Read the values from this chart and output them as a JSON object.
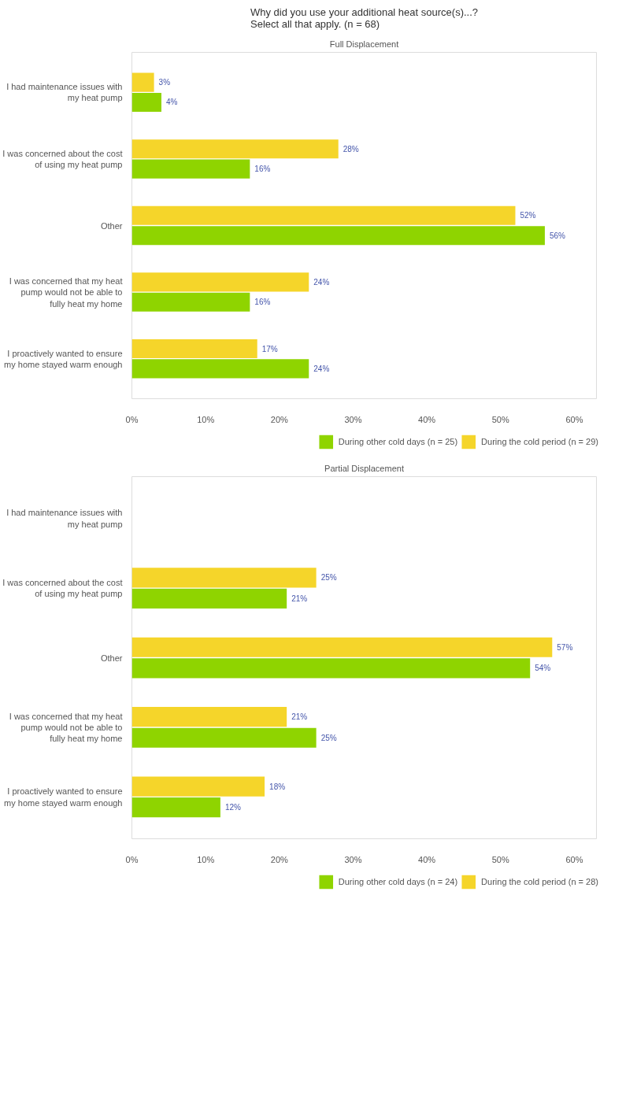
{
  "chart_data": [
    {
      "type": "bar",
      "orientation": "horizontal",
      "title": "Why did you use your additional heat source(s)...?\nSelect all that apply. (n = 68)",
      "subtitle": "Full Displacement",
      "categories": [
        "I had maintenance issues with my heat pump",
        "I was concerned about the cost of using my heat pump",
        "Other",
        "I was concerned that my heat pump would not be able to fully heat my home",
        "I proactively wanted to ensure my home stayed warm enough"
      ],
      "series": [
        {
          "name": "During other cold days (n = 25)",
          "color": "#8fd400",
          "values": [
            4,
            16,
            56,
            16,
            24
          ],
          "value_labels": [
            "4%",
            "16%",
            "56%",
            "16%",
            "24%"
          ]
        },
        {
          "name": "During the cold period (n = 29)",
          "color": "#f5d52a",
          "values": [
            3,
            28,
            52,
            24,
            17
          ],
          "value_labels": [
            "3%",
            "28%",
            "52%",
            "24%",
            "17%"
          ]
        }
      ],
      "xlim": [
        0,
        63
      ],
      "xticks": [
        {
          "value": 0,
          "label": "0%"
        },
        {
          "value": 10,
          "label": "10%"
        },
        {
          "value": 20,
          "label": "20%"
        },
        {
          "value": 30,
          "label": "30%"
        },
        {
          "value": 40,
          "label": "40%"
        },
        {
          "value": 50,
          "label": "50%"
        },
        {
          "value": 60,
          "label": "60%"
        }
      ],
      "data_labels": true,
      "legend": "bottom",
      "grid": false
    },
    {
      "type": "bar",
      "orientation": "horizontal",
      "title": "Partial Displacement",
      "categories": [
        "I had maintenance issues with my heat pump",
        "I was concerned about the cost of using my heat pump",
        "Other",
        "I was concerned that my heat pump would not be able to fully heat my home",
        "I proactively wanted to ensure my home stayed warm enough"
      ],
      "series": [
        {
          "name": "During other cold days (n = 24)",
          "color": "#8fd400",
          "values": [
            null,
            21,
            54,
            25,
            12
          ],
          "value_labels": [
            null,
            "21%",
            "54%",
            "25%",
            "12%"
          ]
        },
        {
          "name": "During the cold period (n = 28)",
          "color": "#f5d52a",
          "values": [
            null,
            25,
            57,
            21,
            18
          ],
          "value_labels": [
            null,
            "25%",
            "57%",
            "21%",
            "18%"
          ]
        }
      ],
      "xlim": [
        0,
        63
      ],
      "xticks": [
        {
          "value": 0,
          "label": "0%"
        },
        {
          "value": 10,
          "label": "10%"
        },
        {
          "value": 20,
          "label": "20%"
        },
        {
          "value": 30,
          "label": "30%"
        },
        {
          "value": 40,
          "label": "40%"
        },
        {
          "value": 50,
          "label": "50%"
        },
        {
          "value": 60,
          "label": "60%"
        }
      ],
      "data_labels": true,
      "legend": "bottom",
      "grid": false
    }
  ]
}
